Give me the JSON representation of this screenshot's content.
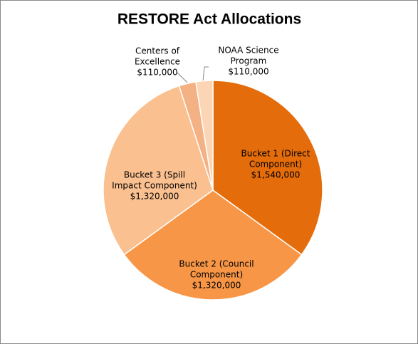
{
  "chart_data": {
    "type": "pie",
    "title": "RESTORE Act Allocations",
    "categories": [
      "Bucket 1 (Direct Component)",
      "Bucket 2 (Council Component)",
      "Bucket 3 (Spill Impact Component)",
      "Centers of Excellence",
      "NOAA Science Program"
    ],
    "values": [
      1540000,
      1320000,
      1320000,
      110000,
      110000
    ],
    "value_labels": [
      "$1,540,000",
      "$1,320,000",
      "$1,320,000",
      "$110,000",
      "$110,000"
    ],
    "colors": [
      "#e46c0a",
      "#f79646",
      "#fac090",
      "#f4b183",
      "#fcd5b5"
    ]
  }
}
